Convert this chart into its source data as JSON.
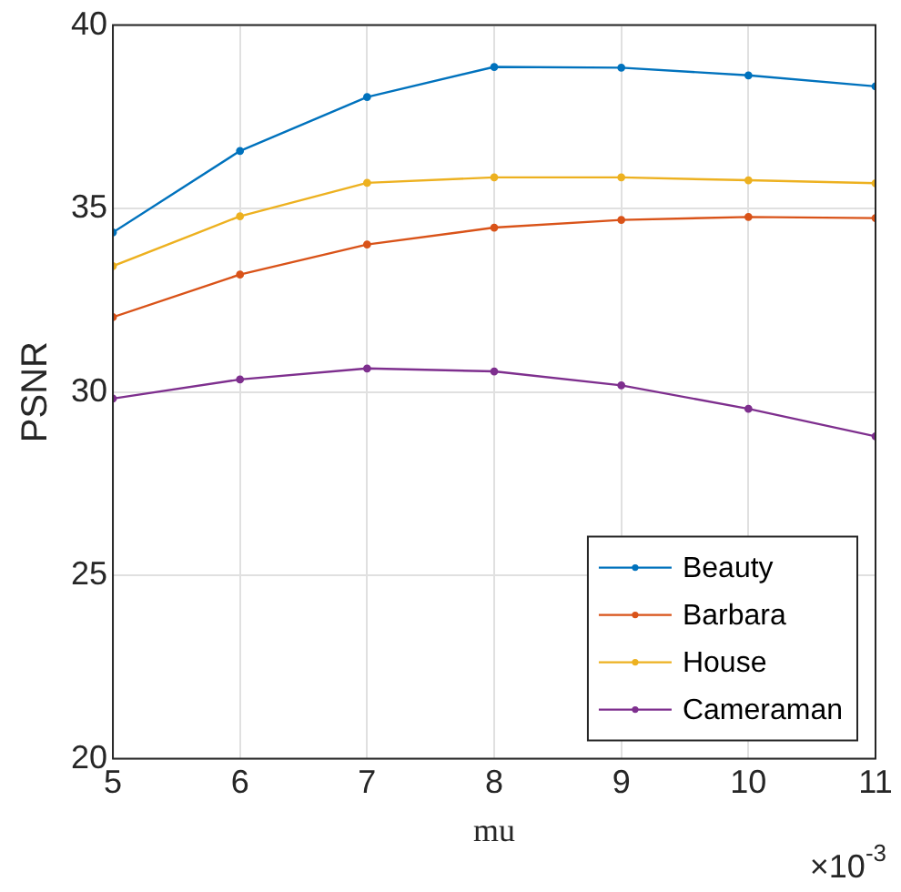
{
  "chart_data": {
    "type": "line",
    "xlabel": "mu",
    "ylabel": "PSNR",
    "annotations": [
      "×10$^{-3}$"
    ],
    "x": [
      5,
      6,
      7,
      8,
      9,
      10,
      11
    ],
    "xlim": [
      5,
      11
    ],
    "xticks": [
      5,
      6,
      7,
      8,
      9,
      10,
      11
    ],
    "ylim": [
      20,
      40
    ],
    "yticks": [
      20,
      25,
      30,
      35,
      40
    ],
    "grid": true,
    "legend": "bottom right",
    "marker": "circle",
    "line_style": "solid",
    "series": [
      {
        "name": "Beauty",
        "color": "#0072bd",
        "values": [
          34.35,
          36.57,
          38.04,
          38.86,
          38.84,
          38.63,
          38.33
        ]
      },
      {
        "name": "Barbara",
        "color": "#d95319",
        "values": [
          32.04,
          33.2,
          34.02,
          34.48,
          34.69,
          34.77,
          34.74
        ]
      },
      {
        "name": "House",
        "color": "#edb120",
        "values": [
          33.43,
          34.79,
          35.7,
          35.85,
          35.85,
          35.77,
          35.69
        ]
      },
      {
        "name": "Cameraman",
        "color": "#7e2f8e",
        "values": [
          29.82,
          30.34,
          30.64,
          30.56,
          30.18,
          29.54,
          28.79
        ]
      }
    ]
  }
}
